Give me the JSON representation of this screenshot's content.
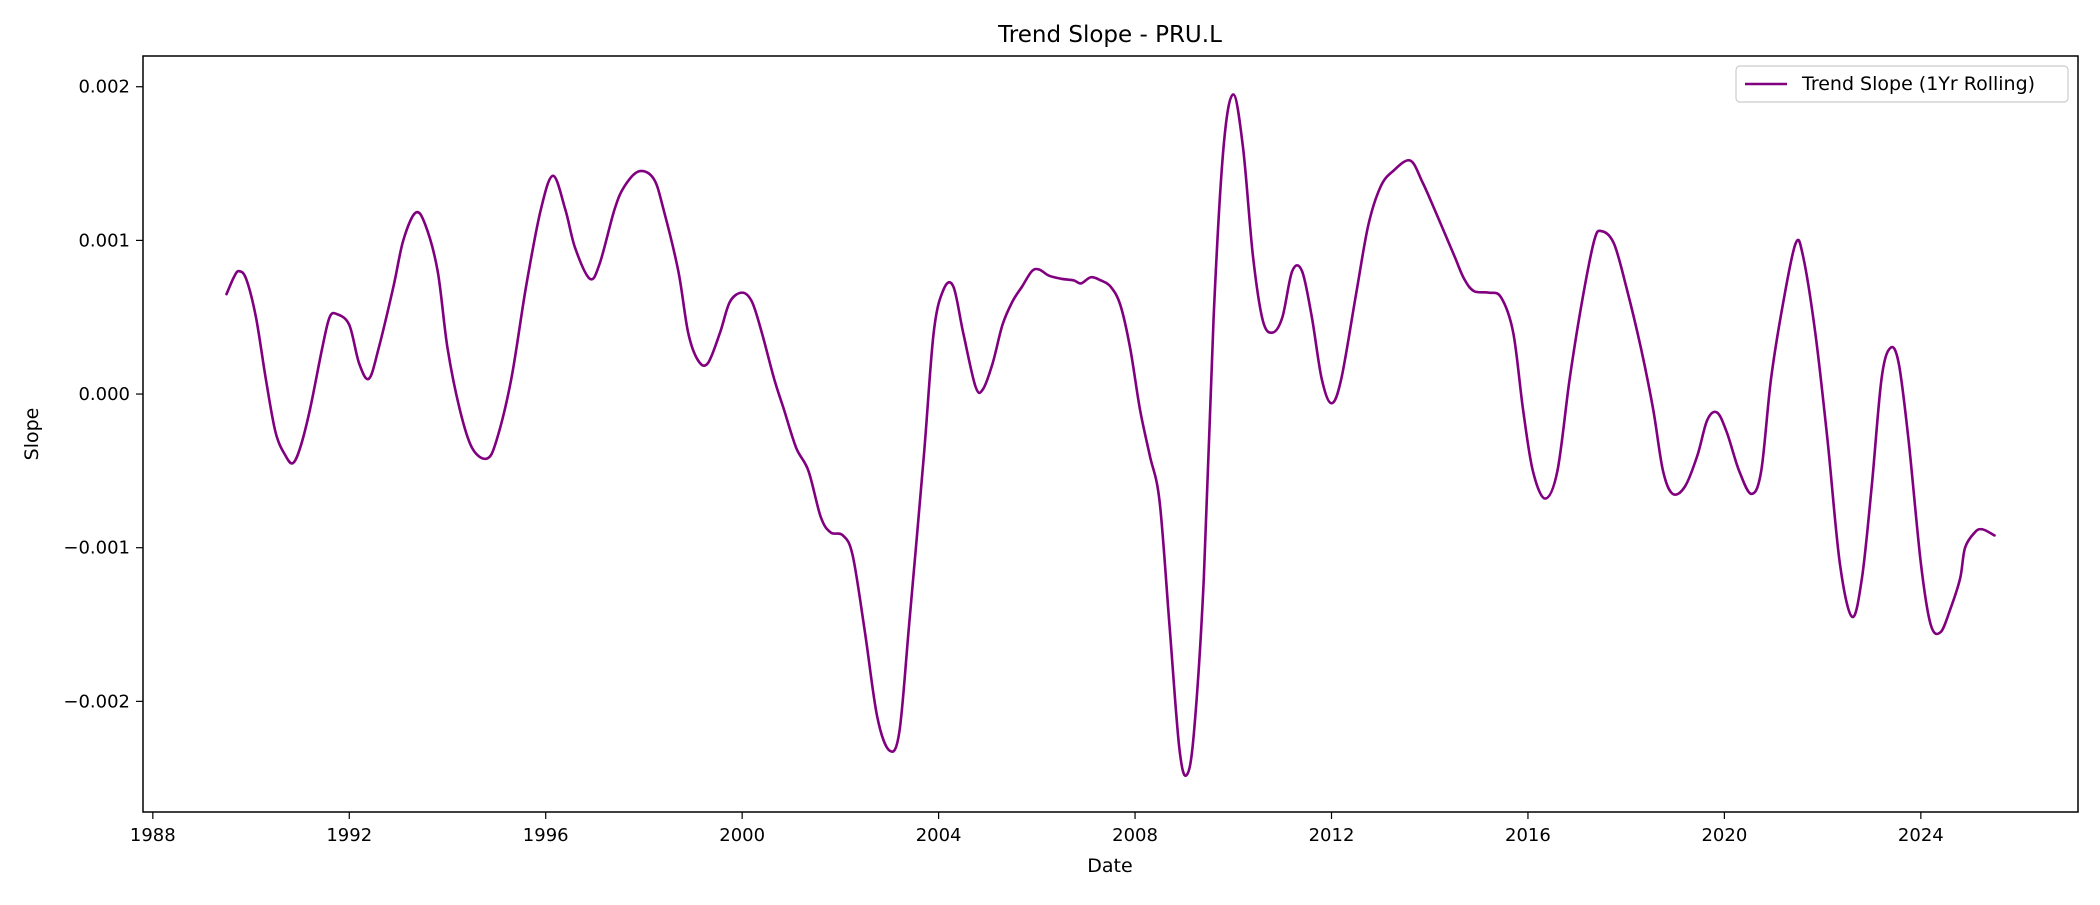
{
  "figure": {
    "title": "Trend Slope - PRU.L",
    "xlabel": "Date",
    "ylabel": "Slope",
    "legend_label": "Trend Slope (1Yr Rolling)"
  },
  "chart_data": {
    "type": "line",
    "title": "Trend Slope - PRU.L",
    "xlabel": "Date",
    "ylabel": "Slope",
    "xlim": [
      1987.8,
      2027.2
    ],
    "ylim": [
      -0.00272,
      0.0022
    ],
    "x_ticks": [
      1988,
      1992,
      1996,
      2000,
      2004,
      2008,
      2012,
      2016,
      2020,
      2024
    ],
    "x_tick_labels": [
      "1988",
      "1992",
      "1996",
      "2000",
      "2004",
      "2008",
      "2012",
      "2016",
      "2020",
      "2024"
    ],
    "y_ticks": [
      -0.002,
      -0.001,
      0.0,
      0.001,
      0.002
    ],
    "y_tick_labels": [
      "−0.002",
      "−0.001",
      "0.000",
      "0.001",
      "0.002"
    ],
    "grid": false,
    "legend_position": "top-right",
    "series": [
      {
        "name": "Trend Slope (1Yr Rolling)",
        "color": "#800080",
        "points": [
          [
            1989.5,
            0.00065
          ],
          [
            1989.65,
            0.00076
          ],
          [
            1989.75,
            0.0008
          ],
          [
            1989.9,
            0.00075
          ],
          [
            1990.1,
            0.0005
          ],
          [
            1990.3,
            0.0001
          ],
          [
            1990.5,
            -0.00025
          ],
          [
            1990.7,
            -0.0004
          ],
          [
            1990.85,
            -0.00045
          ],
          [
            1991.0,
            -0.00035
          ],
          [
            1991.2,
            -0.0001
          ],
          [
            1991.45,
            0.0003
          ],
          [
            1991.6,
            0.0005
          ],
          [
            1991.75,
            0.00052
          ],
          [
            1992.0,
            0.00045
          ],
          [
            1992.2,
            0.0002
          ],
          [
            1992.4,
            0.0001
          ],
          [
            1992.6,
            0.0003
          ],
          [
            1992.9,
            0.0007
          ],
          [
            1993.1,
            0.001
          ],
          [
            1993.35,
            0.00118
          ],
          [
            1993.55,
            0.0011
          ],
          [
            1993.8,
            0.0008
          ],
          [
            1994.0,
            0.0003
          ],
          [
            1994.25,
            -0.0001
          ],
          [
            1994.5,
            -0.00035
          ],
          [
            1994.8,
            -0.00042
          ],
          [
            1995.0,
            -0.0003
          ],
          [
            1995.3,
            0.0001
          ],
          [
            1995.6,
            0.0007
          ],
          [
            1995.9,
            0.0012
          ],
          [
            1996.15,
            0.00142
          ],
          [
            1996.4,
            0.0012
          ],
          [
            1996.6,
            0.00095
          ],
          [
            1996.9,
            0.00075
          ],
          [
            1997.1,
            0.00085
          ],
          [
            1997.4,
            0.0012
          ],
          [
            1997.6,
            0.00135
          ],
          [
            1997.9,
            0.00145
          ],
          [
            1998.2,
            0.0014
          ],
          [
            1998.4,
            0.0012
          ],
          [
            1998.7,
            0.0008
          ],
          [
            1998.9,
            0.0004
          ],
          [
            1999.1,
            0.00022
          ],
          [
            1999.3,
            0.0002
          ],
          [
            1999.55,
            0.0004
          ],
          [
            1999.75,
            0.0006
          ],
          [
            2000.0,
            0.00066
          ],
          [
            2000.2,
            0.0006
          ],
          [
            2000.4,
            0.0004
          ],
          [
            2000.65,
            0.0001
          ],
          [
            2000.85,
            -0.0001
          ],
          [
            2001.1,
            -0.00035
          ],
          [
            2001.35,
            -0.0005
          ],
          [
            2001.6,
            -0.0008
          ],
          [
            2001.8,
            -0.0009
          ],
          [
            2002.05,
            -0.00092
          ],
          [
            2002.25,
            -0.00105
          ],
          [
            2002.5,
            -0.00155
          ],
          [
            2002.75,
            -0.0021
          ],
          [
            2003.0,
            -0.00232
          ],
          [
            2003.2,
            -0.0022
          ],
          [
            2003.4,
            -0.0015
          ],
          [
            2003.7,
            -0.0004
          ],
          [
            2003.9,
            0.0004
          ],
          [
            2004.1,
            0.00068
          ],
          [
            2004.3,
            0.0007
          ],
          [
            2004.5,
            0.0004
          ],
          [
            2004.75,
            5e-05
          ],
          [
            2004.9,
            3e-05
          ],
          [
            2005.1,
            0.0002
          ],
          [
            2005.3,
            0.00045
          ],
          [
            2005.5,
            0.0006
          ],
          [
            2005.7,
            0.0007
          ],
          [
            2005.9,
            0.0008
          ],
          [
            2006.05,
            0.00081
          ],
          [
            2006.25,
            0.00077
          ],
          [
            2006.5,
            0.00075
          ],
          [
            2006.75,
            0.00074
          ],
          [
            2006.9,
            0.00072
          ],
          [
            2007.1,
            0.00076
          ],
          [
            2007.3,
            0.00074
          ],
          [
            2007.5,
            0.0007
          ],
          [
            2007.7,
            0.00058
          ],
          [
            2007.9,
            0.0003
          ],
          [
            2008.1,
            -0.0001
          ],
          [
            2008.3,
            -0.0004
          ],
          [
            2008.5,
            -0.0007
          ],
          [
            2008.7,
            -0.0015
          ],
          [
            2008.9,
            -0.0023
          ],
          [
            2009.05,
            -0.00248
          ],
          [
            2009.2,
            -0.0022
          ],
          [
            2009.4,
            -0.0012
          ],
          [
            2009.6,
            0.0005
          ],
          [
            2009.8,
            0.0016
          ],
          [
            2010.0,
            0.00195
          ],
          [
            2010.2,
            0.0016
          ],
          [
            2010.4,
            0.0009
          ],
          [
            2010.6,
            0.00048
          ],
          [
            2010.8,
            0.0004
          ],
          [
            2011.0,
            0.0005
          ],
          [
            2011.2,
            0.0008
          ],
          [
            2011.4,
            0.0008
          ],
          [
            2011.6,
            0.0005
          ],
          [
            2011.8,
            0.0001
          ],
          [
            2012.0,
            -6e-05
          ],
          [
            2012.2,
            0.0001
          ],
          [
            2012.5,
            0.00065
          ],
          [
            2012.75,
            0.0011
          ],
          [
            2013.0,
            0.00135
          ],
          [
            2013.25,
            0.00145
          ],
          [
            2013.6,
            0.00152
          ],
          [
            2013.85,
            0.00138
          ],
          [
            2014.1,
            0.0012
          ],
          [
            2014.5,
            0.0009
          ],
          [
            2014.7,
            0.00075
          ],
          [
            2014.9,
            0.00067
          ],
          [
            2015.2,
            0.00066
          ],
          [
            2015.45,
            0.00063
          ],
          [
            2015.7,
            0.0004
          ],
          [
            2015.9,
            -0.0001
          ],
          [
            2016.1,
            -0.0005
          ],
          [
            2016.35,
            -0.00068
          ],
          [
            2016.6,
            -0.0005
          ],
          [
            2016.85,
            0.0001
          ],
          [
            2017.1,
            0.0006
          ],
          [
            2017.35,
            0.001
          ],
          [
            2017.5,
            0.00106
          ],
          [
            2017.75,
            0.00098
          ],
          [
            2018.0,
            0.0007
          ],
          [
            2018.3,
            0.0003
          ],
          [
            2018.55,
            -0.0001
          ],
          [
            2018.75,
            -0.0005
          ],
          [
            2018.95,
            -0.00065
          ],
          [
            2019.2,
            -0.0006
          ],
          [
            2019.45,
            -0.0004
          ],
          [
            2019.65,
            -0.00017
          ],
          [
            2019.85,
            -0.00012
          ],
          [
            2020.05,
            -0.00025
          ],
          [
            2020.3,
            -0.0005
          ],
          [
            2020.55,
            -0.00065
          ],
          [
            2020.75,
            -0.0005
          ],
          [
            2020.95,
            0.0001
          ],
          [
            2021.2,
            0.0006
          ],
          [
            2021.45,
            0.00098
          ],
          [
            2021.6,
            0.0009
          ],
          [
            2021.85,
            0.0004
          ],
          [
            2022.1,
            -0.0003
          ],
          [
            2022.35,
            -0.0011
          ],
          [
            2022.6,
            -0.00145
          ],
          [
            2022.8,
            -0.0012
          ],
          [
            2023.0,
            -0.0006
          ],
          [
            2023.2,
            0.0001
          ],
          [
            2023.38,
            0.0003
          ],
          [
            2023.55,
            0.0002
          ],
          [
            2023.75,
            -0.0003
          ],
          [
            2024.0,
            -0.0011
          ],
          [
            2024.2,
            -0.0015
          ],
          [
            2024.4,
            -0.00155
          ],
          [
            2024.6,
            -0.0014
          ],
          [
            2024.8,
            -0.0012
          ],
          [
            2024.9,
            -0.001
          ],
          [
            2025.1,
            -0.0009
          ],
          [
            2025.25,
            -0.00088
          ],
          [
            2025.5,
            -0.00092
          ]
        ]
      }
    ]
  }
}
